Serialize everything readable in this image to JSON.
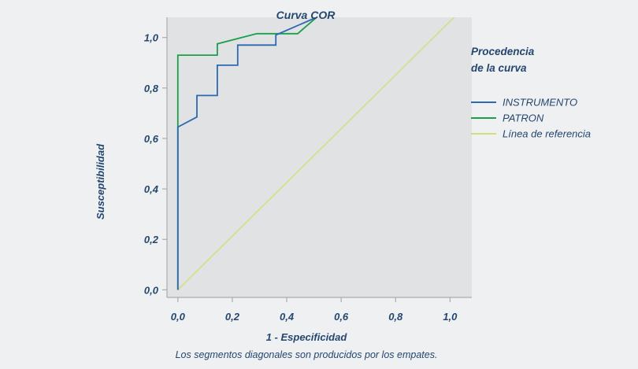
{
  "chart_data": {
    "type": "line",
    "title": "Curva COR",
    "xlabel": "1 - Especificidad",
    "ylabel": "Susceptibilidad",
    "footnote": "Los segmentos diagonales son producidos por los empates.",
    "xlim": [
      -0.04,
      1.08
    ],
    "ylim": [
      -0.03,
      1.08
    ],
    "x_ticks": [
      "0,0",
      "0,2",
      "0,4",
      "0,6",
      "0,8",
      "1,0"
    ],
    "y_ticks": [
      "0,0",
      "0,2",
      "0,4",
      "0,6",
      "0,8",
      "1,0"
    ],
    "grid": false,
    "legend": {
      "title_line1": "Procedencia",
      "title_line2": "de la curva",
      "placement": "right"
    },
    "series": [
      {
        "name": "INSTRUMENTO",
        "color": "#2f68b2",
        "x": [
          0.0,
          0.0,
          0.07,
          0.07,
          0.145,
          0.145,
          0.22,
          0.22,
          0.36,
          0.36,
          0.51
        ],
        "y": [
          0.0,
          0.645,
          0.685,
          0.77,
          0.77,
          0.89,
          0.89,
          0.97,
          0.97,
          1.01,
          1.08
        ]
      },
      {
        "name": "PATRON",
        "color": "#1c9e4b",
        "x": [
          0.0,
          0.0,
          0.145,
          0.145,
          0.29,
          0.44,
          0.51
        ],
        "y": [
          0.0,
          0.93,
          0.93,
          0.975,
          1.015,
          1.015,
          1.08
        ]
      },
      {
        "name": "Línea de referencia",
        "color": "#d2de78",
        "x": [
          0.0,
          1.015
        ],
        "y": [
          0.0,
          1.08
        ]
      }
    ]
  }
}
